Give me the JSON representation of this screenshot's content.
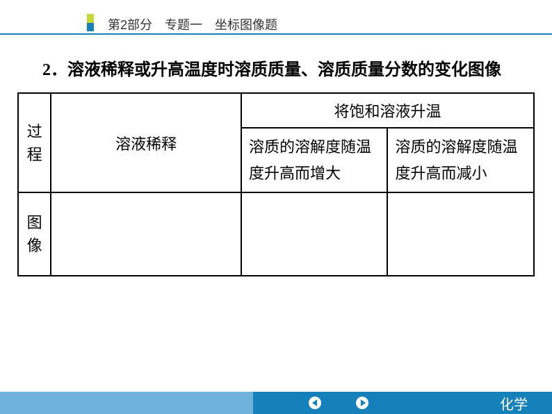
{
  "header": {
    "marker_top_color": "#c5d936",
    "marker_bottom_color": "#1680bb",
    "breadcrumb": "第2部分　专题一　坐标图像题",
    "line_color": "#1680bb"
  },
  "content": {
    "title": "2．溶液稀释或升高温度时溶质质量、溶质质量分数的变化图像"
  },
  "table": {
    "row_headers": [
      "过程",
      "图像"
    ],
    "header_span": "将饱和溶液升温",
    "cells": {
      "dilution": "溶液稀释",
      "temp_increase": "溶质的溶解度随温度升高而增大",
      "temp_decrease": "溶质的溶解度随温度升高而减小"
    }
  },
  "footer": {
    "light_color": "#6db3db",
    "light_width": 364,
    "dark_color": "#1680bb",
    "subject": "化学",
    "arrow_color": "#1680bb"
  }
}
